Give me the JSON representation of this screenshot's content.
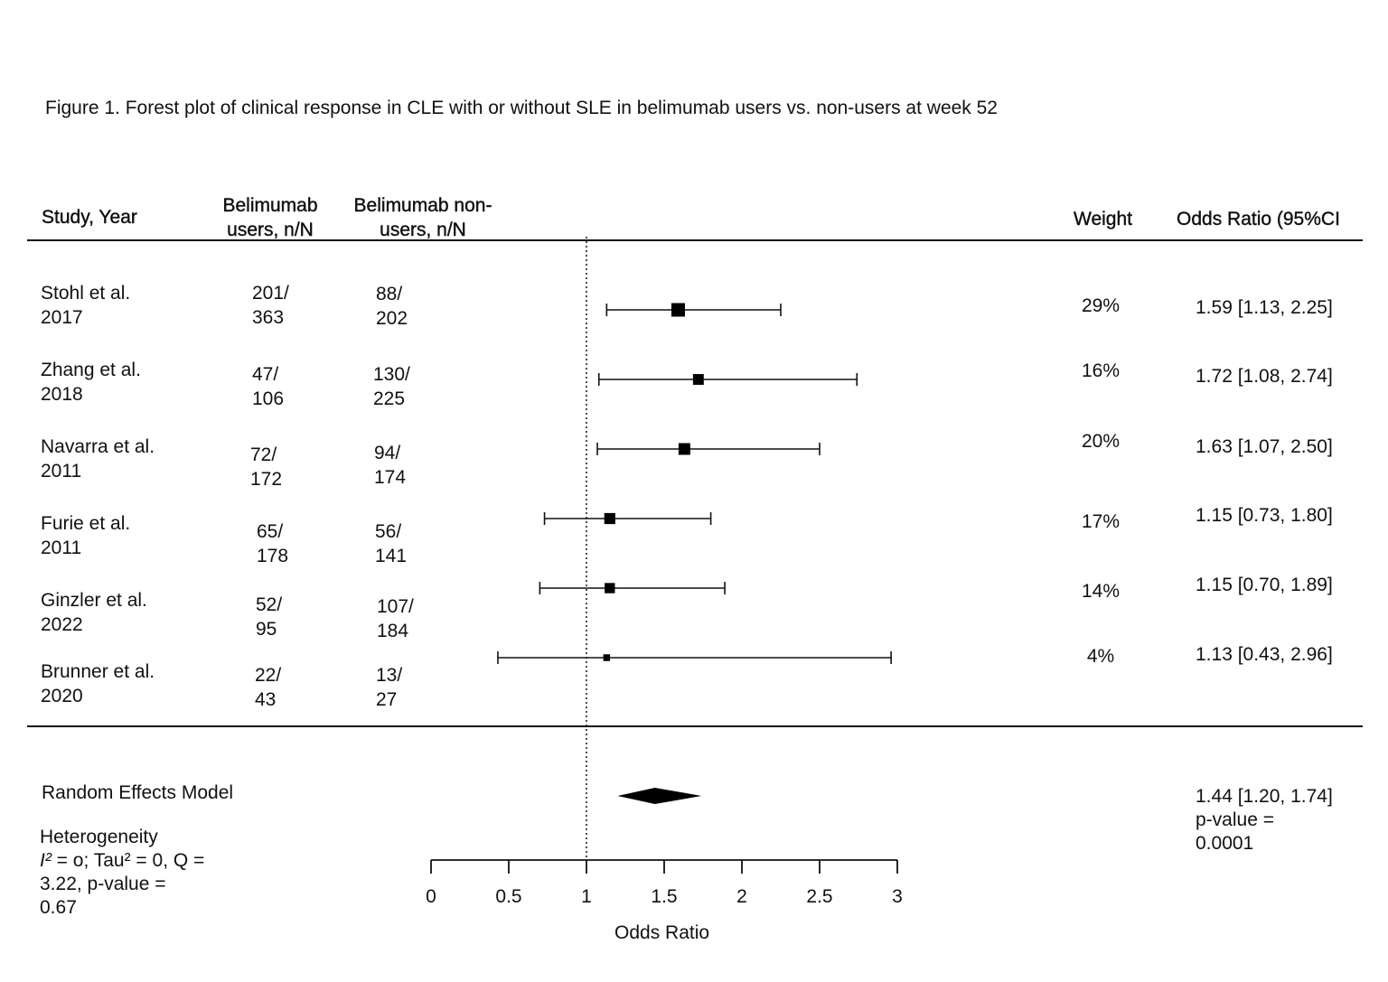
{
  "title": "Figure 1. Forest plot of clinical response in CLE with or without SLE in belimumab users vs. non-users at week 52",
  "headers": {
    "study": "Study, Year",
    "users_line1": "Belimumab",
    "users_line2": "users, n/N",
    "nonusers_line1": "Belimumab non-",
    "nonusers_line2": "users, n/N",
    "weight": "Weight",
    "or": "Odds Ratio (95%CI"
  },
  "chart_data": {
    "type": "forest",
    "xlabel": "Odds Ratio",
    "xlim": [
      0,
      3
    ],
    "ticks": [
      "0",
      "0.5",
      "1",
      "1.5",
      "2",
      "2.5",
      "3"
    ],
    "reference_line": 1,
    "studies": [
      {
        "name": "Stohl et al.",
        "year": "2017",
        "users_n": "201/",
        "users_N": "363",
        "nonusers_n": "88/",
        "nonusers_N": "202",
        "weight": "29%",
        "or_text": "1.59 [1.13, 2.25]",
        "or": 1.59,
        "lo": 1.13,
        "hi": 2.25,
        "w": 29
      },
      {
        "name": "Zhang et al.",
        "year": "2018",
        "users_n": "47/",
        "users_N": "106",
        "nonusers_n": "130/",
        "nonusers_N": "225",
        "weight": "16%",
        "or_text": "1.72 [1.08, 2.74]",
        "or": 1.72,
        "lo": 1.08,
        "hi": 2.74,
        "w": 16
      },
      {
        "name": "Navarra et al.",
        "year": "2011",
        "users_n": "72/",
        "users_N": "172",
        "nonusers_n": "94/",
        "nonusers_N": "174",
        "weight": "20%",
        "or_text": "1.63 [1.07, 2.50]",
        "or": 1.63,
        "lo": 1.07,
        "hi": 2.5,
        "w": 20
      },
      {
        "name": "Furie et al.",
        "year": "2011",
        "users_n": "65/",
        "users_N": "178",
        "nonusers_n": "56/",
        "nonusers_N": "141",
        "weight": "17%",
        "or_text": "1.15 [0.73, 1.80]",
        "or": 1.15,
        "lo": 0.73,
        "hi": 1.8,
        "w": 17
      },
      {
        "name": "Ginzler et al.",
        "year": "2022",
        "users_n": "52/",
        "users_N": "95",
        "nonusers_n": "107/",
        "nonusers_N": "184",
        "weight": "14%",
        "or_text": "1.15 [0.70, 1.89]",
        "or": 1.15,
        "lo": 0.7,
        "hi": 1.89,
        "w": 14
      },
      {
        "name": "Brunner et al.",
        "year": "2020",
        "users_n": "22/",
        "users_N": "43",
        "nonusers_n": "13/",
        "nonusers_N": "27",
        "weight": "4%",
        "or_text": "1.13 [0.43, 2.96]",
        "or": 1.13,
        "lo": 0.43,
        "hi": 2.96,
        "w": 4
      }
    ],
    "pooled": {
      "label": "Random Effects Model",
      "or": 1.44,
      "lo": 1.2,
      "hi": 1.74,
      "or_text": "1.44 [1.20, 1.74]",
      "p_line1": "p-value =",
      "p_line2": "0.0001"
    },
    "heterogeneity": {
      "line1": "Heterogeneity",
      "line2_rest": " = o; Tau² = 0, Q =",
      "line2_i": "I²",
      "line3": "3.22, p-value =",
      "line4": "0.67"
    }
  }
}
